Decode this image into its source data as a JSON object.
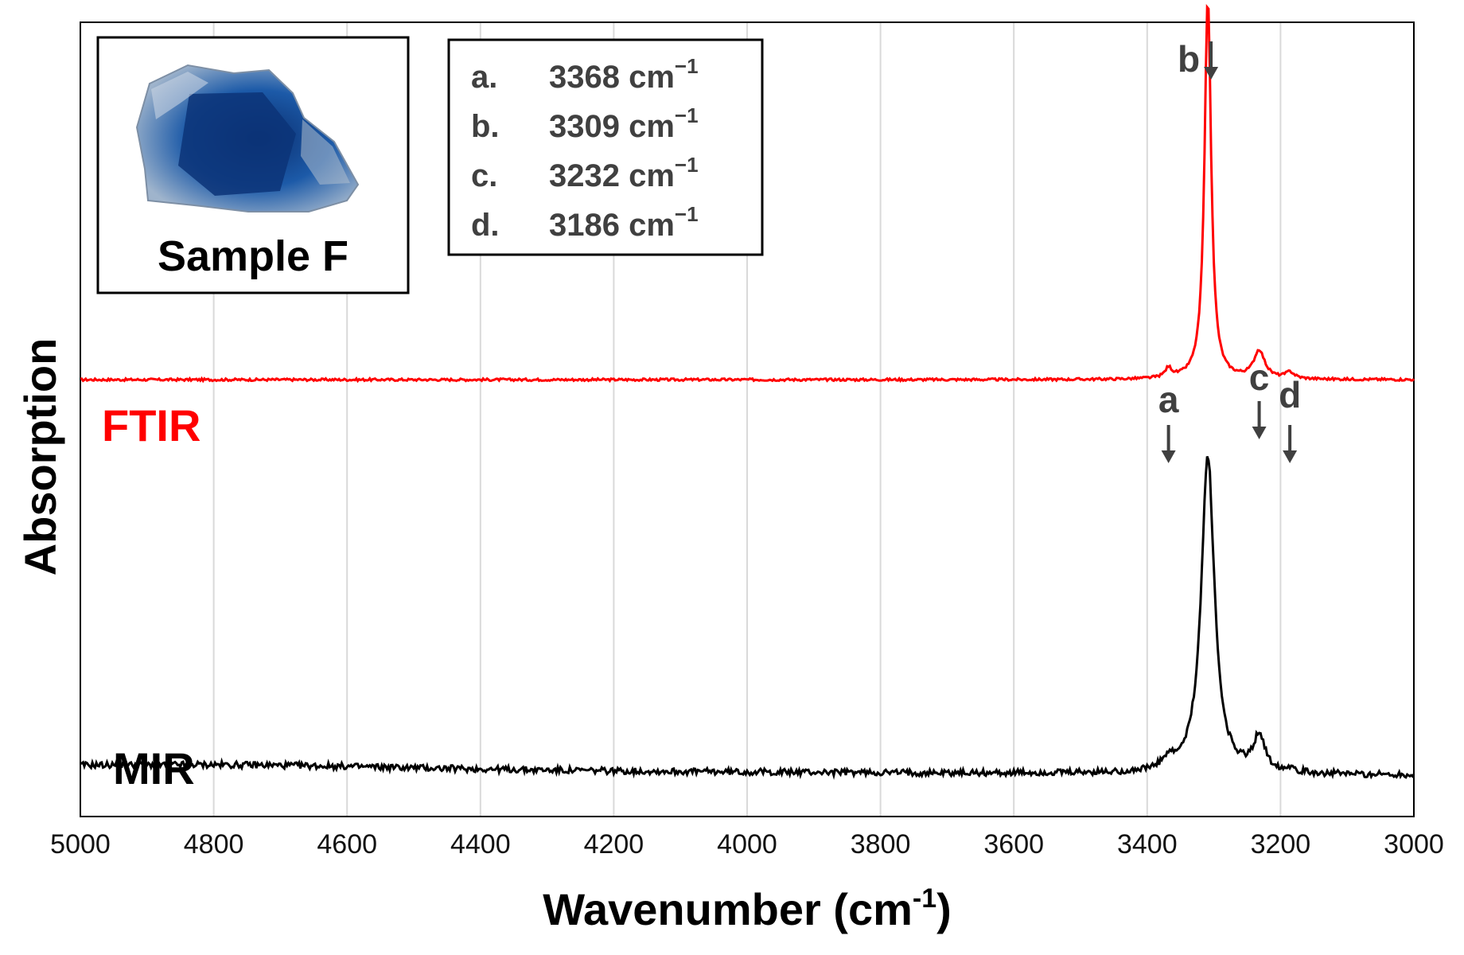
{
  "chart_data": {
    "type": "line",
    "xlabel_main": "Wavenumber (cm",
    "xlabel_sup": "-1",
    "xlabel_end": ")",
    "ylabel": "Absorption",
    "xlim": [
      5000,
      3000
    ],
    "x_reversed": true,
    "grid": true,
    "x_ticks": [
      "5000",
      "4800",
      "4600",
      "4400",
      "4200",
      "4000",
      "3800",
      "3600",
      "3400",
      "3200",
      "3000"
    ],
    "x_tick_values": [
      5000,
      4800,
      4600,
      4400,
      4200,
      4000,
      3800,
      3600,
      3400,
      3200,
      3000
    ],
    "series": [
      {
        "name": "FTIR",
        "color": "#ff0000",
        "baseline": 0.55,
        "peaks": [
          {
            "x": 3368,
            "h": 0.012,
            "w": 6
          },
          {
            "x": 3309,
            "h": 0.48,
            "w": 6
          },
          {
            "x": 3232,
            "h": 0.035,
            "w": 10
          },
          {
            "x": 3186,
            "h": 0.008,
            "w": 8
          }
        ]
      },
      {
        "name": "MIR",
        "color": "#000000",
        "baseline": 0.06,
        "peaks": [
          {
            "x": 3368,
            "h": 0.012,
            "w": 10
          },
          {
            "x": 3309,
            "h": 0.4,
            "w": 12
          },
          {
            "x": 3232,
            "h": 0.045,
            "w": 10
          },
          {
            "x": 3186,
            "h": 0.006,
            "w": 8
          }
        ]
      }
    ],
    "peak_legend": [
      {
        "letter": "a.",
        "value": "3368 cm",
        "sup": "−1"
      },
      {
        "letter": "b.",
        "value": "3309 cm",
        "sup": "−1"
      },
      {
        "letter": "c.",
        "value": "3232 cm",
        "sup": "−1"
      },
      {
        "letter": "d.",
        "value": "3186 cm",
        "sup": "−1"
      }
    ],
    "peak_markers": [
      {
        "letter": "a",
        "x": 3368
      },
      {
        "letter": "b",
        "x": 3309
      },
      {
        "letter": "c",
        "x": 3232
      },
      {
        "letter": "d",
        "x": 3186
      }
    ],
    "legend_placement": "top-center",
    "inset": {
      "caption": "Sample F",
      "placement": "top-left"
    }
  },
  "colors": {
    "gem_dark": "#0a2d6e",
    "gem_mid": "#1c5aa8",
    "gem_light": "#9fb4cc"
  }
}
